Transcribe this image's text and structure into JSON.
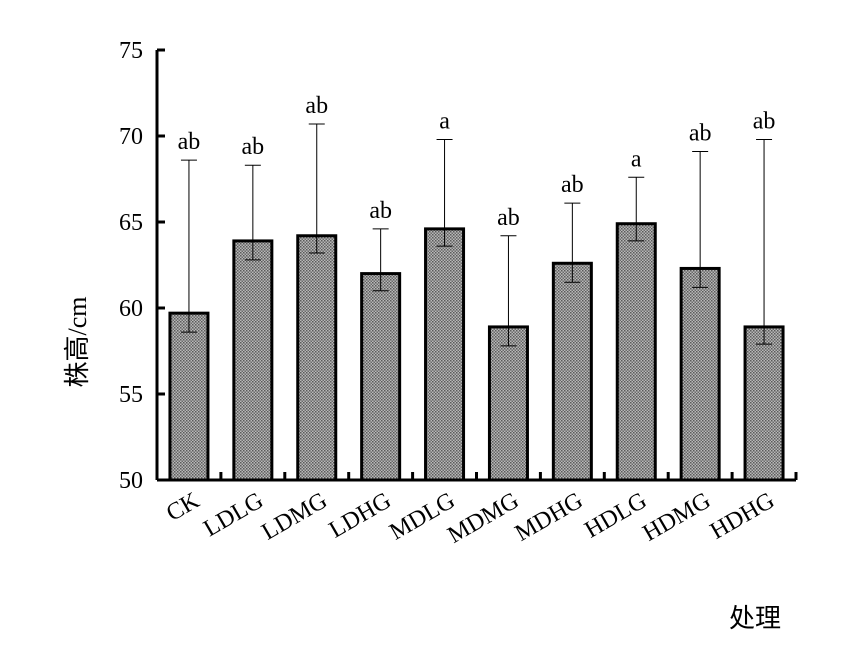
{
  "chart_data": {
    "type": "bar",
    "title": "",
    "xlabel": "处理",
    "ylabel": "株高/cm",
    "ylim": [
      50,
      75
    ],
    "yticks": [
      50,
      55,
      60,
      65,
      70,
      75
    ],
    "categories": [
      "CK",
      "LDLG",
      "LDMG",
      "LDHG",
      "MDLG",
      "MDMG",
      "MDHG",
      "HDLG",
      "HDMG",
      "HDHG"
    ],
    "values": [
      59.7,
      63.9,
      64.2,
      62.0,
      64.6,
      58.9,
      62.6,
      64.9,
      62.3,
      58.9
    ],
    "error_upper": [
      68.6,
      68.3,
      70.7,
      64.6,
      69.8,
      64.2,
      66.1,
      67.6,
      69.1,
      69.8
    ],
    "error_lower": [
      58.6,
      62.8,
      63.2,
      61.0,
      63.6,
      57.8,
      61.5,
      63.9,
      61.2,
      57.9
    ],
    "significance": [
      "ab",
      "ab",
      "ab",
      "ab",
      "a",
      "ab",
      "ab",
      "a",
      "ab",
      "ab"
    ],
    "legend": "none",
    "grid": false,
    "bar_fill": "#999999",
    "bar_stroke": "#000000"
  }
}
